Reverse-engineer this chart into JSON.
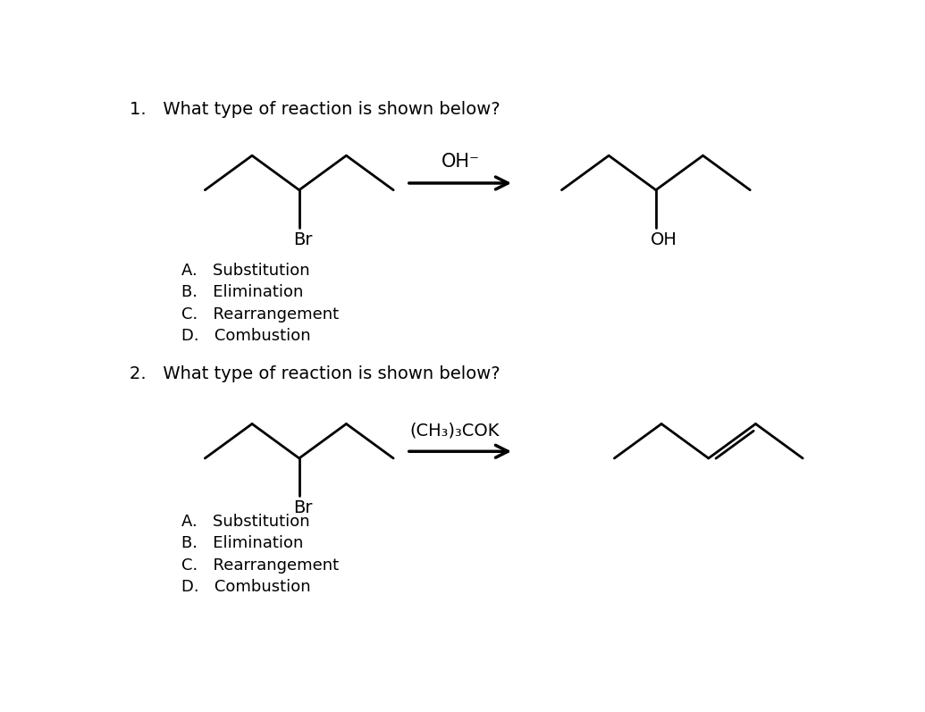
{
  "background_color": "#ffffff",
  "q1_text": "1.   What type of reaction is shown below?",
  "q2_text": "2.   What type of reaction is shown below?",
  "q1_reagent": "OH⁻",
  "q2_reagent": "(CH₃)₃COK",
  "q1_choices": [
    "A.   Substitution",
    "B.   Elimination",
    "C.   Rearrangement",
    "D.   Combustion"
  ],
  "q2_choices": [
    "A.   Substitution",
    "B.   Elimination",
    "C.   Rearrangement",
    "D.   Combustion"
  ],
  "text_color": "#000000",
  "line_color": "#000000",
  "line_width": 2.0,
  "font_size_question": 14,
  "font_size_choices": 13,
  "font_size_label": 12
}
